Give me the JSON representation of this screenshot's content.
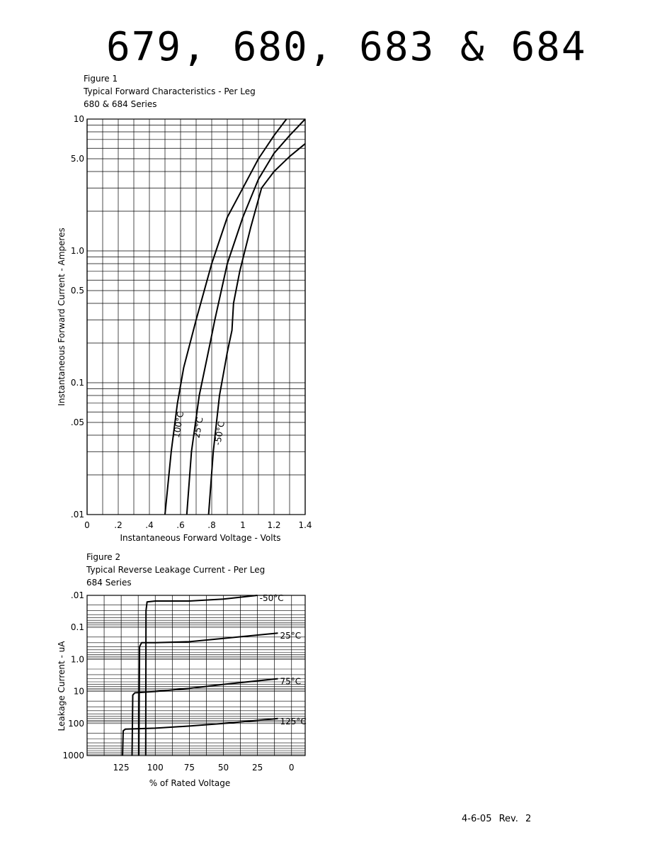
{
  "page": {
    "title": "679, 680, 683 & 684",
    "revision": "4-6-05 Rev. 2"
  },
  "chart_data": [
    {
      "type": "line",
      "figure_label": "Figure 1",
      "title": "Typical Forward Characteristics - Per Leg",
      "subtitle": "680 & 684 Series",
      "xlabel": "Instantaneous Forward Voltage - Volts",
      "ylabel": "Instantaneous Forward Current - Amperes",
      "xlim": [
        0,
        1.4
      ],
      "ylim": [
        0.01,
        10
      ],
      "yscale": "log",
      "grid": true,
      "x_ticks": [
        0,
        0.2,
        0.4,
        0.6,
        0.8,
        1.0,
        1.2,
        1.4
      ],
      "x_tick_labels": [
        "0",
        ".2",
        ".4",
        ".6",
        ".8",
        "1",
        "1.2",
        "1.4"
      ],
      "y_ticks": [
        0.01,
        0.05,
        0.1,
        0.5,
        1.0,
        5.0,
        10
      ],
      "y_tick_labels": [
        ".01",
        ".05",
        "0.1",
        "0.5",
        "1.0",
        "5.0",
        "10"
      ],
      "series": [
        {
          "name": "100°C",
          "points": [
            [
              0.5,
              0.01
            ],
            [
              0.54,
              0.03
            ],
            [
              0.58,
              0.07
            ],
            [
              0.62,
              0.13
            ],
            [
              0.7,
              0.3
            ],
            [
              0.8,
              0.8
            ],
            [
              0.9,
              1.8
            ],
            [
              1.0,
              3.0
            ],
            [
              1.1,
              5.0
            ],
            [
              1.2,
              7.5
            ],
            [
              1.28,
              10
            ]
          ]
        },
        {
          "name": "25°C",
          "points": [
            [
              0.64,
              0.01
            ],
            [
              0.67,
              0.03
            ],
            [
              0.72,
              0.08
            ],
            [
              0.79,
              0.2
            ],
            [
              0.82,
              0.3
            ],
            [
              0.9,
              0.8
            ],
            [
              1.0,
              1.8
            ],
            [
              1.1,
              3.5
            ],
            [
              1.2,
              5.5
            ],
            [
              1.3,
              7.5
            ],
            [
              1.4,
              10
            ]
          ]
        },
        {
          "name": "-50°C",
          "points": [
            [
              0.78,
              0.01
            ],
            [
              0.81,
              0.03
            ],
            [
              0.85,
              0.08
            ],
            [
              0.9,
              0.17
            ],
            [
              0.93,
              0.25
            ],
            [
              0.94,
              0.4
            ],
            [
              0.98,
              0.7
            ],
            [
              1.05,
              1.5
            ],
            [
              1.12,
              3.0
            ],
            [
              1.2,
              4.0
            ],
            [
              1.3,
              5.2
            ],
            [
              1.4,
              6.5
            ]
          ]
        }
      ]
    },
    {
      "type": "line",
      "figure_label": "Figure 2",
      "title": "Typical Reverse Leakage Current - Per Leg",
      "subtitle": "684 Series",
      "xlabel": "% of Rated Voltage",
      "ylabel": "Leakage Current - uA",
      "xlim": [
        150,
        -10
      ],
      "ylim": [
        0.01,
        1000
      ],
      "yscale": "log",
      "y_inverted": true,
      "grid": true,
      "x_ticks": [
        125,
        100,
        75,
        50,
        25,
        0
      ],
      "x_tick_labels": [
        "125",
        "100",
        "75",
        "50",
        "25",
        "0"
      ],
      "y_ticks": [
        0.01,
        0.1,
        1.0,
        10,
        100,
        1000
      ],
      "y_tick_labels": [
        ".01",
        "0.1",
        "1.0",
        "10",
        "100",
        "1000"
      ],
      "series": [
        {
          "name": "-50°C",
          "points": [
            [
              107,
              1000
            ],
            [
              106.8,
              0.03
            ],
            [
              106,
              0.016
            ],
            [
              100,
              0.015
            ],
            [
              75,
              0.015
            ],
            [
              50,
              0.013
            ],
            [
              25,
              0.01
            ]
          ]
        },
        {
          "name": "25°C",
          "points": [
            [
              112,
              1000
            ],
            [
              111.5,
              0.4
            ],
            [
              110,
              0.3
            ],
            [
              100,
              0.3
            ],
            [
              75,
              0.28
            ],
            [
              50,
              0.22
            ],
            [
              10,
              0.15
            ]
          ]
        },
        {
          "name": "75°C",
          "points": [
            [
              117,
              1000
            ],
            [
              116.5,
              13
            ],
            [
              115,
              11
            ],
            [
              100,
              10
            ],
            [
              75,
              8
            ],
            [
              50,
              6
            ],
            [
              10,
              4
            ]
          ]
        },
        {
          "name": "125°C",
          "points": [
            [
              124,
              1000
            ],
            [
              123.5,
              170
            ],
            [
              122,
              150
            ],
            [
              100,
              140
            ],
            [
              75,
              120
            ],
            [
              50,
              100
            ],
            [
              10,
              70
            ]
          ]
        }
      ]
    }
  ]
}
